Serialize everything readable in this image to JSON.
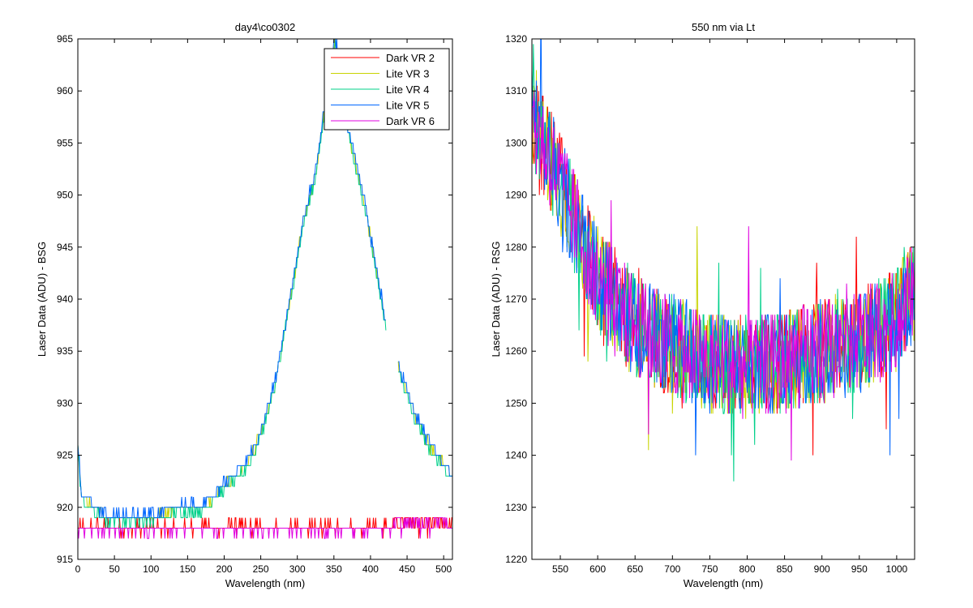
{
  "figure": {
    "background": "#ffffff"
  },
  "chart_data": [
    {
      "type": "line",
      "title": "day4\\co0302",
      "xlabel": "Wavelength (nm)",
      "ylabel": "Laser Data (ADU) - BSG",
      "xlim": [
        0,
        512
      ],
      "ylim": [
        915,
        965
      ],
      "xticks": [
        0,
        50,
        100,
        150,
        200,
        250,
        300,
        350,
        400,
        450,
        500
      ],
      "yticks": [
        915,
        920,
        925,
        930,
        935,
        940,
        945,
        950,
        955,
        960,
        965
      ],
      "legend": {
        "placement": "top-right",
        "box": true
      },
      "grid": false,
      "series": [
        {
          "name": "Dark VR 2",
          "color": "#ff0000",
          "baseline": 918,
          "range": [
            0,
            512
          ],
          "note_points": [
            [
              0,
              918
            ],
            [
              50,
              918
            ],
            [
              100,
              918
            ],
            [
              150,
              918
            ],
            [
              200,
              918
            ],
            [
              250,
              918
            ],
            [
              300,
              918
            ],
            [
              350,
              918
            ],
            [
              400,
              918
            ],
            [
              450,
              918
            ],
            [
              512,
              918
            ]
          ]
        },
        {
          "name": "Lite VR 3",
          "color": "#c8d400",
          "points": [
            [
              0,
              926
            ],
            [
              5,
              921
            ],
            [
              20,
              920
            ],
            [
              40,
              919
            ],
            [
              60,
              919
            ],
            [
              100,
              919
            ],
            [
              140,
              920
            ],
            [
              170,
              920
            ],
            [
              200,
              922
            ],
            [
              230,
              924
            ],
            [
              250,
              927
            ],
            [
              270,
              932
            ],
            [
              290,
              940
            ],
            [
              310,
              948
            ],
            [
              325,
              952
            ],
            [
              335,
              957
            ],
            [
              345,
              962
            ],
            [
              352,
              965
            ],
            [
              360,
              961
            ],
            [
              370,
              956
            ],
            [
              380,
              953
            ],
            [
              395,
              948
            ],
            [
              405,
              944
            ],
            [
              420,
              938
            ],
            [
              440,
              933
            ],
            [
              450,
              931
            ],
            [
              460,
              929
            ],
            [
              480,
              926
            ],
            [
              500,
              924
            ],
            [
              512,
              923
            ]
          ]
        },
        {
          "name": "Lite VR 4",
          "color": "#00d08a",
          "points": [
            [
              0,
              926
            ],
            [
              5,
              921
            ],
            [
              20,
              920
            ],
            [
              40,
              919
            ],
            [
              60,
              919
            ],
            [
              100,
              919
            ],
            [
              140,
              920
            ],
            [
              170,
              920
            ],
            [
              200,
              922
            ],
            [
              230,
              924
            ],
            [
              250,
              927
            ],
            [
              270,
              932
            ],
            [
              290,
              940
            ],
            [
              310,
              948
            ],
            [
              325,
              952
            ],
            [
              335,
              957
            ],
            [
              345,
              962
            ],
            [
              352,
              965
            ],
            [
              360,
              961
            ],
            [
              370,
              956
            ],
            [
              380,
              953
            ],
            [
              395,
              948
            ],
            [
              405,
              944
            ],
            [
              420,
              938
            ],
            [
              440,
              933
            ],
            [
              450,
              931
            ],
            [
              460,
              929
            ],
            [
              480,
              926
            ],
            [
              500,
              924
            ],
            [
              512,
              923
            ]
          ]
        },
        {
          "name": "Lite VR 5",
          "color": "#0066ff",
          "points": [
            [
              0,
              926
            ],
            [
              5,
              921
            ],
            [
              20,
              920
            ],
            [
              40,
              919
            ],
            [
              60,
              919
            ],
            [
              100,
              919
            ],
            [
              140,
              920
            ],
            [
              170,
              920
            ],
            [
              200,
              922
            ],
            [
              230,
              924
            ],
            [
              250,
              927
            ],
            [
              270,
              932
            ],
            [
              290,
              940
            ],
            [
              310,
              948
            ],
            [
              325,
              952
            ],
            [
              335,
              957
            ],
            [
              345,
              962
            ],
            [
              352,
              965
            ],
            [
              360,
              961
            ],
            [
              370,
              956
            ],
            [
              380,
              953
            ],
            [
              395,
              948
            ],
            [
              405,
              944
            ],
            [
              420,
              938
            ],
            [
              440,
              933
            ],
            [
              450,
              931
            ],
            [
              460,
              929
            ],
            [
              480,
              926
            ],
            [
              500,
              924
            ],
            [
              512,
              923
            ]
          ]
        },
        {
          "name": "Dark VR 6",
          "color": "#e000e0",
          "baseline": 918,
          "range": [
            0,
            512
          ],
          "note_points": [
            [
              0,
              918
            ],
            [
              50,
              918
            ],
            [
              100,
              918
            ],
            [
              150,
              918
            ],
            [
              200,
              918
            ],
            [
              250,
              918
            ],
            [
              300,
              918
            ],
            [
              350,
              918
            ],
            [
              400,
              918
            ],
            [
              450,
              918
            ],
            [
              512,
              918
            ]
          ]
        }
      ]
    },
    {
      "type": "line",
      "title": "550 nm via Lt",
      "xlabel": "Wavelength (nm)",
      "ylabel": "Laser Data (ADU) - RSG",
      "xlim": [
        512,
        1024
      ],
      "ylim": [
        1220,
        1320
      ],
      "xticks": [
        550,
        600,
        650,
        700,
        750,
        800,
        850,
        900,
        950,
        1000
      ],
      "yticks": [
        1220,
        1230,
        1240,
        1250,
        1260,
        1270,
        1280,
        1290,
        1300,
        1310,
        1320
      ],
      "grid": false,
      "trend": [
        [
          512,
          1305
        ],
        [
          550,
          1292
        ],
        [
          600,
          1274
        ],
        [
          650,
          1265
        ],
        [
          700,
          1261
        ],
        [
          750,
          1258
        ],
        [
          800,
          1257
        ],
        [
          850,
          1258
        ],
        [
          900,
          1260
        ],
        [
          950,
          1262
        ],
        [
          1000,
          1266
        ],
        [
          1024,
          1272
        ]
      ],
      "noise_amplitude": 10,
      "series": [
        {
          "color": "#ff0000"
        },
        {
          "color": "#c8d400"
        },
        {
          "color": "#00d08a"
        },
        {
          "color": "#0066ff"
        },
        {
          "color": "#e000e0"
        }
      ]
    }
  ]
}
